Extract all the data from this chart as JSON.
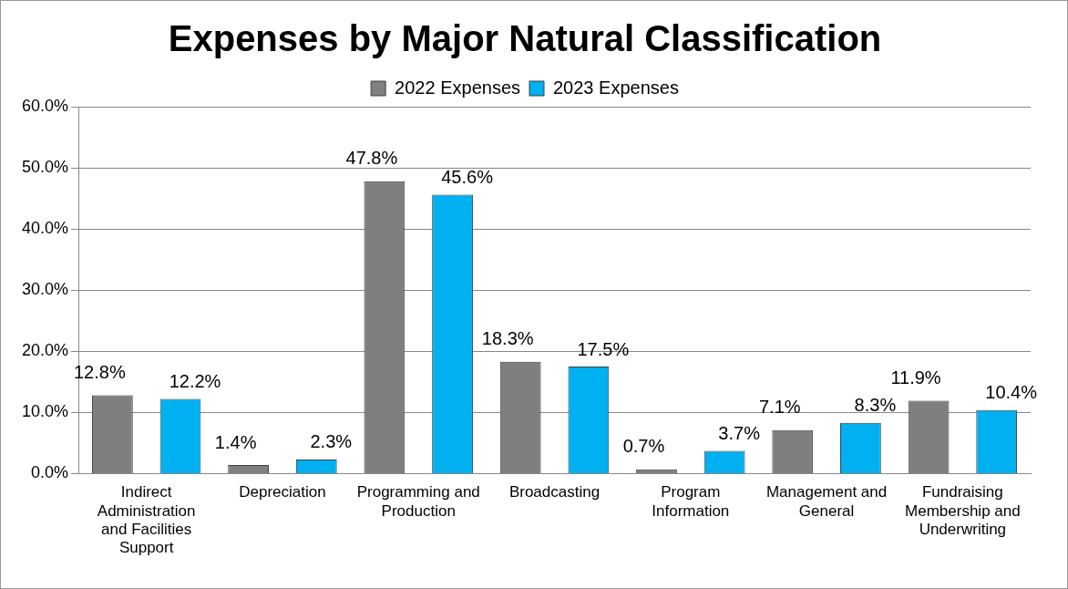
{
  "chart_data": {
    "type": "bar",
    "title": "Expenses by Major Natural Classification",
    "categories": [
      "Indirect Administration and Facilities Support",
      "Depreciation",
      "Programming and Production",
      "Broadcasting",
      "Program Information",
      "Management and General",
      "Fundraising Membership and Underwriting"
    ],
    "series": [
      {
        "name": "2022 Expenses",
        "color": "#7f7f7f",
        "values": [
          12.8,
          1.4,
          47.8,
          18.3,
          0.7,
          7.1,
          11.9
        ],
        "value_labels": [
          "12.8%",
          "1.4%",
          "47.8%",
          "18.3%",
          "0.7%",
          "7.1%",
          "11.9%"
        ]
      },
      {
        "name": "2023 Expenses",
        "color": "#00b0f0",
        "values": [
          12.2,
          2.3,
          45.6,
          17.5,
          3.7,
          8.3,
          10.4
        ],
        "value_labels": [
          "12.2%",
          "2.3%",
          "45.6%",
          "17.5%",
          "3.7%",
          "8.3%",
          "10.4%"
        ]
      }
    ],
    "ylim": [
      0,
      60
    ],
    "yticks": [
      {
        "value": 0,
        "label": "0.0%"
      },
      {
        "value": 10,
        "label": "10.0%"
      },
      {
        "value": 20,
        "label": "20.0%"
      },
      {
        "value": 30,
        "label": "30.0%"
      },
      {
        "value": 40,
        "label": "40.0%"
      },
      {
        "value": 50,
        "label": "50.0%"
      },
      {
        "value": 60,
        "label": "60.0%"
      }
    ],
    "grid": "y",
    "legend": "top"
  }
}
